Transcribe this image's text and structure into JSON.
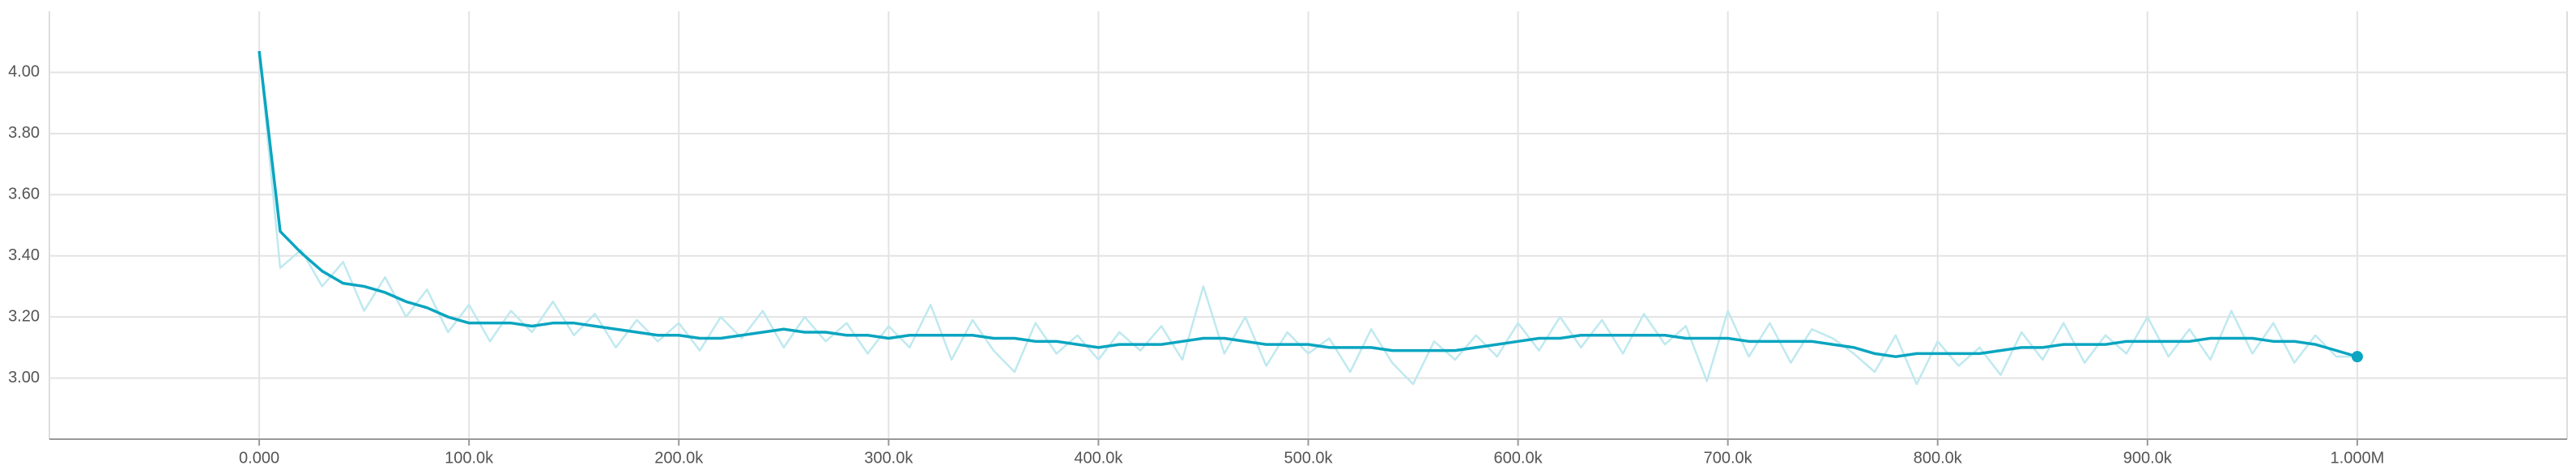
{
  "chart_data": {
    "type": "line",
    "x": [
      0,
      10000,
      20000,
      30000,
      40000,
      50000,
      60000,
      70000,
      80000,
      90000,
      100000,
      110000,
      120000,
      130000,
      140000,
      150000,
      160000,
      170000,
      180000,
      190000,
      200000,
      210000,
      220000,
      230000,
      240000,
      250000,
      260000,
      270000,
      280000,
      290000,
      300000,
      310000,
      320000,
      330000,
      340000,
      350000,
      360000,
      370000,
      380000,
      390000,
      400000,
      410000,
      420000,
      430000,
      440000,
      450000,
      460000,
      470000,
      480000,
      490000,
      500000,
      510000,
      520000,
      530000,
      540000,
      550000,
      560000,
      570000,
      580000,
      590000,
      600000,
      610000,
      620000,
      630000,
      640000,
      650000,
      660000,
      670000,
      680000,
      690000,
      700000,
      710000,
      720000,
      730000,
      740000,
      750000,
      760000,
      770000,
      780000,
      790000,
      800000,
      810000,
      820000,
      830000,
      840000,
      850000,
      860000,
      870000,
      880000,
      890000,
      900000,
      910000,
      920000,
      930000,
      940000,
      950000,
      960000,
      970000,
      980000,
      990000,
      1000000
    ],
    "series": [
      {
        "color": "#bfe9ef",
        "values": [
          4.07,
          3.36,
          3.42,
          3.3,
          3.38,
          3.22,
          3.33,
          3.2,
          3.29,
          3.15,
          3.24,
          3.12,
          3.22,
          3.15,
          3.25,
          3.14,
          3.21,
          3.1,
          3.19,
          3.12,
          3.18,
          3.09,
          3.2,
          3.13,
          3.22,
          3.1,
          3.2,
          3.12,
          3.18,
          3.08,
          3.17,
          3.1,
          3.24,
          3.06,
          3.19,
          3.09,
          3.02,
          3.18,
          3.08,
          3.14,
          3.06,
          3.15,
          3.09,
          3.17,
          3.06,
          3.3,
          3.08,
          3.2,
          3.04,
          3.15,
          3.08,
          3.13,
          3.02,
          3.16,
          3.05,
          2.98,
          3.12,
          3.06,
          3.14,
          3.07,
          3.18,
          3.09,
          3.2,
          3.1,
          3.19,
          3.08,
          3.21,
          3.11,
          3.17,
          2.99,
          3.22,
          3.07,
          3.18,
          3.05,
          3.16,
          3.13,
          3.08,
          3.02,
          3.14,
          2.98,
          3.12,
          3.04,
          3.1,
          3.01,
          3.15,
          3.06,
          3.18,
          3.05,
          3.14,
          3.08,
          3.2,
          3.07,
          3.16,
          3.06,
          3.22,
          3.08,
          3.18,
          3.05,
          3.14,
          3.07,
          3.07
        ]
      },
      {
        "color": "#0aa5c0",
        "values": [
          4.07,
          3.48,
          3.41,
          3.35,
          3.31,
          3.3,
          3.28,
          3.25,
          3.23,
          3.2,
          3.18,
          3.18,
          3.18,
          3.17,
          3.18,
          3.18,
          3.17,
          3.16,
          3.15,
          3.14,
          3.14,
          3.13,
          3.13,
          3.14,
          3.15,
          3.16,
          3.15,
          3.15,
          3.14,
          3.14,
          3.13,
          3.14,
          3.14,
          3.14,
          3.14,
          3.13,
          3.13,
          3.12,
          3.12,
          3.11,
          3.1,
          3.11,
          3.11,
          3.11,
          3.12,
          3.13,
          3.13,
          3.12,
          3.11,
          3.11,
          3.11,
          3.1,
          3.1,
          3.1,
          3.09,
          3.09,
          3.09,
          3.09,
          3.1,
          3.11,
          3.12,
          3.13,
          3.13,
          3.14,
          3.14,
          3.14,
          3.14,
          3.14,
          3.13,
          3.13,
          3.13,
          3.12,
          3.12,
          3.12,
          3.12,
          3.11,
          3.1,
          3.08,
          3.07,
          3.08,
          3.08,
          3.08,
          3.08,
          3.09,
          3.1,
          3.1,
          3.11,
          3.11,
          3.11,
          3.12,
          3.12,
          3.12,
          3.12,
          3.13,
          3.13,
          3.13,
          3.12,
          3.12,
          3.11,
          3.09,
          3.07
        ]
      }
    ],
    "xlim": [
      -100000,
      1100000
    ],
    "xticks": [
      {
        "value": 0,
        "label": "0.000"
      },
      {
        "value": 100000,
        "label": "100.0k"
      },
      {
        "value": 200000,
        "label": "200.0k"
      },
      {
        "value": 300000,
        "label": "300.0k"
      },
      {
        "value": 400000,
        "label": "400.0k"
      },
      {
        "value": 500000,
        "label": "500.0k"
      },
      {
        "value": 600000,
        "label": "600.0k"
      },
      {
        "value": 700000,
        "label": "700.0k"
      },
      {
        "value": 800000,
        "label": "800.0k"
      },
      {
        "value": 900000,
        "label": "900.0k"
      },
      {
        "value": 1000000,
        "label": "1.000M"
      }
    ],
    "ylim": [
      2.8,
      4.2
    ],
    "yticks": [
      {
        "value": 3,
        "label": "3.00"
      },
      {
        "value": 3.2,
        "label": "3.20"
      },
      {
        "value": 3.4,
        "label": "3.40"
      },
      {
        "value": 3.6,
        "label": "3.60"
      },
      {
        "value": 3.8,
        "label": "3.80"
      },
      {
        "value": 4,
        "label": "4.00"
      }
    ],
    "grid": true
  }
}
